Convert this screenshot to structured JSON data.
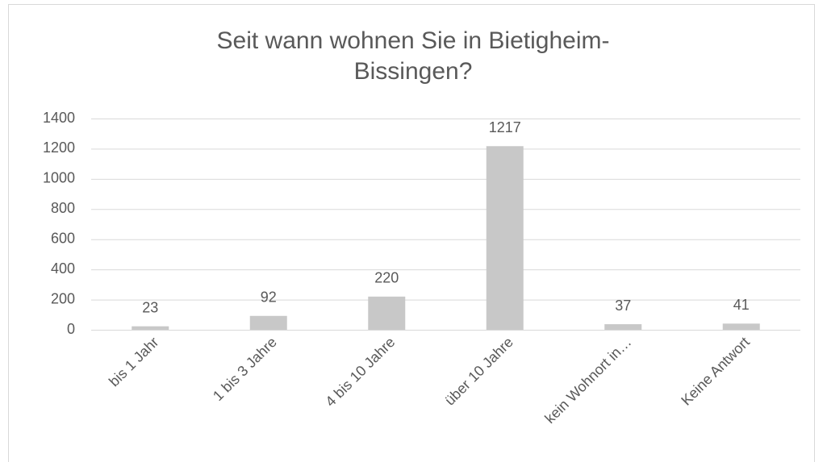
{
  "chart_data": {
    "type": "bar",
    "title": "Seit wann wohnen Sie in Bietigheim-Bissingen?",
    "categories": [
      "bis 1 Jahr",
      "1 bis 3 Jahre",
      "4 bis 10 Jahre",
      "über 10 Jahre",
      "kein Wohnort in…",
      "Keine Antwort"
    ],
    "values": [
      23,
      92,
      220,
      1217,
      37,
      41
    ],
    "color": "#c8c8c8",
    "ylim": [
      0,
      1400
    ],
    "yticks": [
      0,
      200,
      400,
      600,
      800,
      1000,
      1200,
      1400
    ],
    "grid": true
  }
}
